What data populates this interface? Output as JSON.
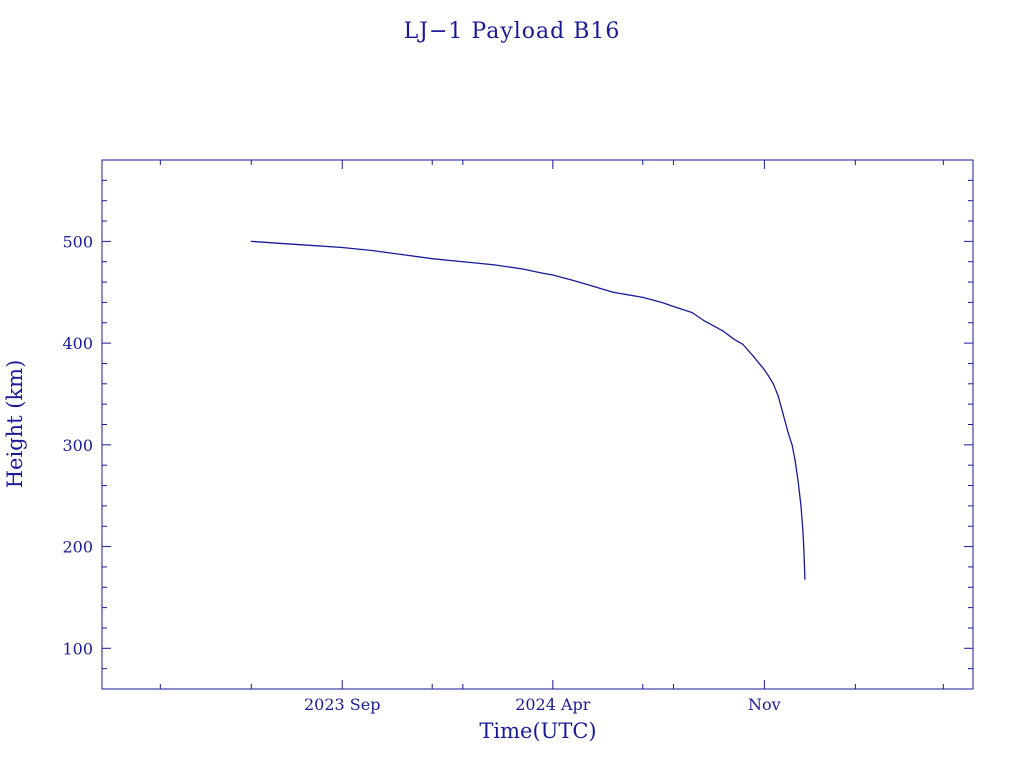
{
  "chart_data": {
    "type": "line",
    "title": "LJ−1 Payload B16",
    "xlabel": "Time(UTC)",
    "ylabel": "Height (km)",
    "x_axis_type": "date",
    "xlim": [
      "2023-01-01",
      "2025-05-31"
    ],
    "ylim": [
      60,
      580
    ],
    "x_major_ticks": [
      {
        "date": "2023-09-01",
        "label": "2023 Sep"
      },
      {
        "date": "2024-04-01",
        "label": "2024 Apr"
      },
      {
        "date": "2024-11-01",
        "label": "Nov"
      }
    ],
    "x_minor_ticks": [
      "2023-03-01",
      "2023-06-01",
      "2023-12-01",
      "2024-01-01",
      "2024-07-01",
      "2024-08-01",
      "2025-02-01",
      "2025-05-01"
    ],
    "y_major_ticks": [
      100,
      200,
      300,
      400,
      500
    ],
    "y_minor_step": 20,
    "grid": false,
    "color": "#1a1a99",
    "series": [
      {
        "x": [
          "2023-06-01",
          "2023-07-01",
          "2023-08-01",
          "2023-09-01",
          "2023-10-01",
          "2023-11-01",
          "2023-12-01",
          "2024-01-01",
          "2024-02-01",
          "2024-03-01",
          "2024-03-20",
          "2024-04-01",
          "2024-04-20",
          "2024-05-01",
          "2024-06-01",
          "2024-07-01",
          "2024-07-20",
          "2024-08-01",
          "2024-08-20",
          "2024-09-01",
          "2024-09-20",
          "2024-10-01",
          "2024-10-10",
          "2024-10-20",
          "2024-10-31",
          "2024-11-05",
          "2024-11-10",
          "2024-11-15",
          "2024-11-20",
          "2024-11-25",
          "2024-11-29",
          "2024-12-02",
          "2024-12-05",
          "2024-12-08",
          "2024-12-10",
          "2024-12-11",
          "2024-12-12"
        ],
        "y": [
          500,
          498,
          496,
          494,
          491,
          487,
          483,
          480,
          477,
          473,
          469,
          467,
          462,
          459,
          450,
          445,
          440,
          436,
          430,
          422,
          412,
          404,
          399,
          388,
          375,
          368,
          360,
          348,
          330,
          312,
          300,
          285,
          265,
          240,
          215,
          195,
          168
        ]
      }
    ]
  }
}
